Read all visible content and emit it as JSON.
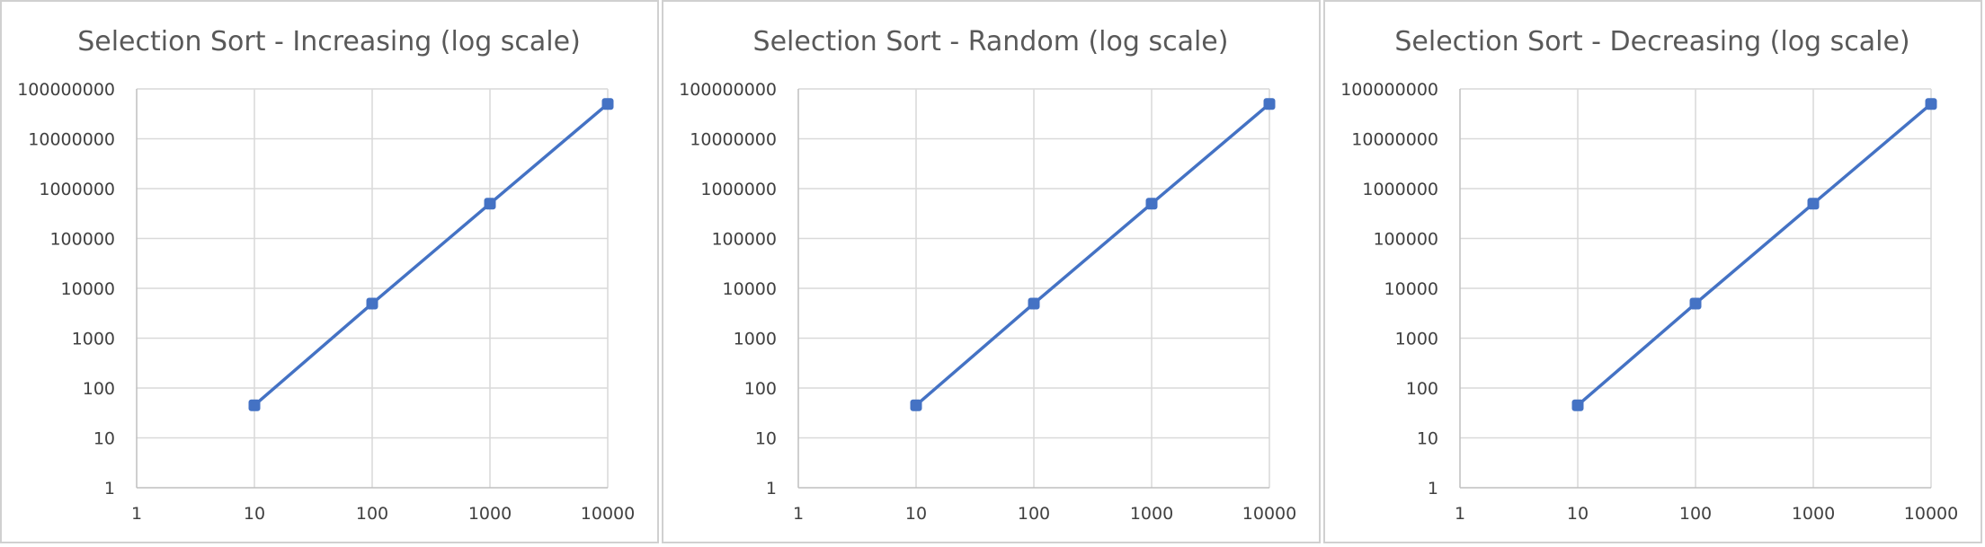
{
  "chart_data": [
    {
      "type": "line",
      "title": "Selection Sort - Increasing (log scale)",
      "xlabel": "",
      "ylabel": "",
      "x_scale": "log",
      "y_scale": "log",
      "xlim": [
        1,
        10000
      ],
      "ylim": [
        1,
        100000000
      ],
      "x_ticks": [
        "1",
        "10",
        "100",
        "1000",
        "10000"
      ],
      "y_ticks": [
        "1",
        "10",
        "100",
        "1000",
        "10000",
        "100000",
        "1000000",
        "10000000",
        "100000000"
      ],
      "grid": true,
      "legend": "none",
      "color": "#4472C4",
      "x": [
        10,
        100,
        1000,
        10000
      ],
      "y": [
        45,
        4950,
        499500,
        49995000
      ]
    },
    {
      "type": "line",
      "title": "Selection Sort - Random (log scale)",
      "xlabel": "",
      "ylabel": "",
      "x_scale": "log",
      "y_scale": "log",
      "xlim": [
        1,
        10000
      ],
      "ylim": [
        1,
        100000000
      ],
      "x_ticks": [
        "1",
        "10",
        "100",
        "1000",
        "10000"
      ],
      "y_ticks": [
        "1",
        "10",
        "100",
        "1000",
        "10000",
        "100000",
        "1000000",
        "10000000",
        "100000000"
      ],
      "grid": true,
      "legend": "none",
      "color": "#4472C4",
      "x": [
        10,
        100,
        1000,
        10000
      ],
      "y": [
        45,
        4950,
        499500,
        49995000
      ]
    },
    {
      "type": "line",
      "title": "Selection Sort - Decreasing (log scale)",
      "xlabel": "",
      "ylabel": "",
      "x_scale": "log",
      "y_scale": "log",
      "xlim": [
        1,
        10000
      ],
      "ylim": [
        1,
        100000000
      ],
      "x_ticks": [
        "1",
        "10",
        "100",
        "1000",
        "10000"
      ],
      "y_ticks": [
        "1",
        "10",
        "100",
        "1000",
        "10000",
        "100000",
        "1000000",
        "10000000",
        "100000000"
      ],
      "grid": true,
      "legend": "none",
      "color": "#4472C4",
      "x": [
        10,
        100,
        1000,
        10000
      ],
      "y": [
        45,
        4950,
        499500,
        49995000
      ]
    }
  ]
}
